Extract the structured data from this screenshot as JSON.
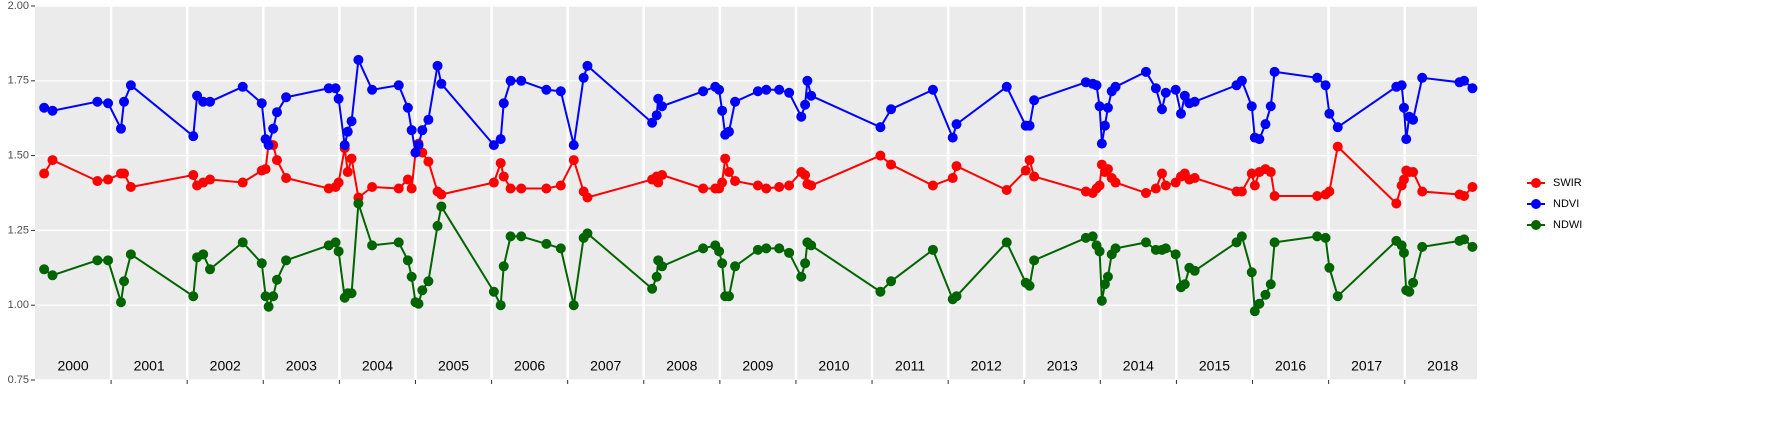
{
  "chart_data": {
    "type": "line",
    "x": [
      2000.12,
      2000.23,
      2000.82,
      2000.96,
      2001.13,
      2001.17,
      2001.26,
      2002.08,
      2002.13,
      2002.21,
      2002.3,
      2002.73,
      2002.98,
      2003.03,
      2003.07,
      2003.13,
      2003.18,
      2003.3,
      2003.86,
      2003.95,
      2003.99,
      2004.07,
      2004.11,
      2004.16,
      2004.25,
      2004.43,
      2004.78,
      2004.9,
      2004.95,
      2005.0,
      2005.04,
      2005.09,
      2005.17,
      2005.29,
      2005.34,
      2006.03,
      2006.12,
      2006.16,
      2006.25,
      2006.39,
      2006.72,
      2006.91,
      2007.08,
      2007.21,
      2007.26,
      2008.11,
      2008.17,
      2008.19,
      2008.24,
      2008.78,
      2008.94,
      2008.99,
      2009.03,
      2009.07,
      2009.12,
      2009.2,
      2009.5,
      2009.61,
      2009.78,
      2009.91,
      2010.07,
      2010.12,
      2010.15,
      2010.2,
      2011.11,
      2011.25,
      2011.8,
      2012.06,
      2012.11,
      2012.77,
      2013.02,
      2013.07,
      2013.13,
      2013.81,
      2013.9,
      2013.95,
      2013.99,
      2014.02,
      2014.06,
      2014.1,
      2014.15,
      2014.2,
      2014.6,
      2014.73,
      2014.81,
      2014.86,
      2014.99,
      2015.06,
      2015.11,
      2015.17,
      2015.24,
      2015.79,
      2015.86,
      2015.99,
      2016.03,
      2016.09,
      2016.17,
      2016.24,
      2016.29,
      2016.85,
      2016.96,
      2017.01,
      2017.12,
      2017.89,
      2017.96,
      2017.99,
      2018.02,
      2018.06,
      2018.11,
      2018.23,
      2018.72,
      2018.78,
      2018.89
    ],
    "series": [
      {
        "name": "SWIR",
        "color": "#ff0000",
        "values": [
          1.44,
          1.485,
          1.415,
          1.42,
          1.44,
          1.44,
          1.395,
          1.435,
          1.4,
          1.41,
          1.42,
          1.41,
          1.45,
          1.455,
          1.54,
          1.535,
          1.485,
          1.425,
          1.39,
          1.395,
          1.41,
          1.525,
          1.445,
          1.49,
          1.36,
          1.395,
          1.39,
          1.42,
          1.39,
          1.51,
          1.54,
          1.51,
          1.48,
          1.38,
          1.37,
          1.41,
          1.475,
          1.43,
          1.39,
          1.39,
          1.39,
          1.4,
          1.485,
          1.38,
          1.36,
          1.42,
          1.43,
          1.41,
          1.435,
          1.39,
          1.39,
          1.39,
          1.41,
          1.49,
          1.445,
          1.415,
          1.4,
          1.39,
          1.395,
          1.4,
          1.445,
          1.435,
          1.405,
          1.4,
          1.5,
          1.47,
          1.4,
          1.425,
          1.465,
          1.385,
          1.45,
          1.485,
          1.43,
          1.38,
          1.375,
          1.39,
          1.4,
          1.47,
          1.445,
          1.455,
          1.425,
          1.41,
          1.375,
          1.39,
          1.44,
          1.4,
          1.41,
          1.43,
          1.44,
          1.42,
          1.425,
          1.38,
          1.38,
          1.44,
          1.4,
          1.445,
          1.455,
          1.445,
          1.365,
          1.365,
          1.37,
          1.38,
          1.53,
          1.34,
          1.4,
          1.42,
          1.45,
          1.445,
          1.445,
          1.38,
          1.37,
          1.365,
          1.395
        ]
      },
      {
        "name": "NDVI",
        "color": "#0000ff",
        "values": [
          1.66,
          1.65,
          1.68,
          1.675,
          1.59,
          1.68,
          1.735,
          1.565,
          1.7,
          1.68,
          1.68,
          1.73,
          1.675,
          1.555,
          1.535,
          1.59,
          1.645,
          1.695,
          1.725,
          1.725,
          1.69,
          1.535,
          1.58,
          1.615,
          1.82,
          1.72,
          1.735,
          1.66,
          1.585,
          1.51,
          1.535,
          1.585,
          1.62,
          1.8,
          1.74,
          1.535,
          1.555,
          1.675,
          1.75,
          1.75,
          1.72,
          1.715,
          1.535,
          1.76,
          1.8,
          1.61,
          1.635,
          1.69,
          1.665,
          1.715,
          1.73,
          1.72,
          1.65,
          1.57,
          1.58,
          1.68,
          1.715,
          1.72,
          1.72,
          1.71,
          1.63,
          1.67,
          1.75,
          1.7,
          1.595,
          1.655,
          1.72,
          1.56,
          1.605,
          1.73,
          1.6,
          1.6,
          1.685,
          1.745,
          1.74,
          1.735,
          1.665,
          1.54,
          1.6,
          1.66,
          1.715,
          1.73,
          1.78,
          1.725,
          1.655,
          1.71,
          1.72,
          1.64,
          1.7,
          1.675,
          1.68,
          1.735,
          1.75,
          1.665,
          1.56,
          1.555,
          1.605,
          1.665,
          1.78,
          1.76,
          1.735,
          1.64,
          1.595,
          1.73,
          1.735,
          1.66,
          1.555,
          1.63,
          1.62,
          1.76,
          1.745,
          1.75,
          1.725
        ]
      },
      {
        "name": "NDWI",
        "color": "#006400",
        "values": [
          1.12,
          1.1,
          1.15,
          1.15,
          1.01,
          1.08,
          1.17,
          1.03,
          1.16,
          1.17,
          1.12,
          1.21,
          1.14,
          1.03,
          0.995,
          1.03,
          1.085,
          1.15,
          1.2,
          1.21,
          1.18,
          1.025,
          1.04,
          1.04,
          1.34,
          1.2,
          1.21,
          1.15,
          1.095,
          1.01,
          1.005,
          1.05,
          1.08,
          1.265,
          1.33,
          1.045,
          1.0,
          1.13,
          1.23,
          1.23,
          1.205,
          1.19,
          1.0,
          1.225,
          1.24,
          1.055,
          1.095,
          1.15,
          1.13,
          1.19,
          1.2,
          1.18,
          1.14,
          1.03,
          1.03,
          1.13,
          1.185,
          1.19,
          1.19,
          1.175,
          1.095,
          1.14,
          1.21,
          1.2,
          1.045,
          1.08,
          1.185,
          1.02,
          1.03,
          1.21,
          1.075,
          1.065,
          1.15,
          1.225,
          1.23,
          1.2,
          1.18,
          1.015,
          1.07,
          1.095,
          1.17,
          1.19,
          1.21,
          1.185,
          1.185,
          1.19,
          1.17,
          1.06,
          1.07,
          1.125,
          1.115,
          1.21,
          1.23,
          1.11,
          0.98,
          1.005,
          1.035,
          1.07,
          1.21,
          1.23,
          1.225,
          1.125,
          1.03,
          1.215,
          1.2,
          1.175,
          1.05,
          1.045,
          1.075,
          1.195,
          1.215,
          1.22,
          1.195
        ]
      }
    ],
    "xlim": [
      2000,
      2018.95
    ],
    "ylim": [
      0.75,
      2.0
    ],
    "yticks": [
      {
        "value": 0.75,
        "label": "0.75"
      },
      {
        "value": 1.0,
        "label": "1.00"
      },
      {
        "value": 1.25,
        "label": "1.25"
      },
      {
        "value": 1.5,
        "label": "1.50"
      },
      {
        "value": 1.75,
        "label": "1.75"
      },
      {
        "value": 2.0,
        "label": "2.00"
      }
    ],
    "year_boundaries": [
      2001,
      2002,
      2003,
      2004,
      2005,
      2006,
      2007,
      2008,
      2009,
      2010,
      2011,
      2012,
      2013,
      2014,
      2015,
      2016,
      2017,
      2018
    ],
    "year_labels": [
      {
        "value": 2000.5,
        "label": "2000"
      },
      {
        "value": 2001.5,
        "label": "2001"
      },
      {
        "value": 2002.5,
        "label": "2002"
      },
      {
        "value": 2003.5,
        "label": "2003"
      },
      {
        "value": 2004.5,
        "label": "2004"
      },
      {
        "value": 2005.5,
        "label": "2005"
      },
      {
        "value": 2006.5,
        "label": "2006"
      },
      {
        "value": 2007.5,
        "label": "2007"
      },
      {
        "value": 2008.5,
        "label": "2008"
      },
      {
        "value": 2009.5,
        "label": "2009"
      },
      {
        "value": 2010.5,
        "label": "2010"
      },
      {
        "value": 2011.5,
        "label": "2011"
      },
      {
        "value": 2012.5,
        "label": "2012"
      },
      {
        "value": 2013.5,
        "label": "2013"
      },
      {
        "value": 2014.5,
        "label": "2014"
      },
      {
        "value": 2015.5,
        "label": "2015"
      },
      {
        "value": 2016.5,
        "label": "2016"
      },
      {
        "value": 2017.5,
        "label": "2017"
      },
      {
        "value": 2018.5,
        "label": "2018"
      }
    ],
    "grid": true
  }
}
